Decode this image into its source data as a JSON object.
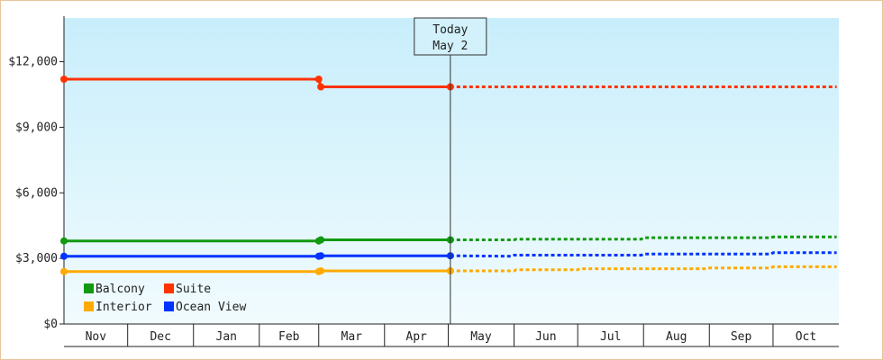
{
  "chart_data": {
    "type": "line",
    "y_ticks": [
      {
        "value": 0,
        "label": "$0"
      },
      {
        "value": 3000,
        "label": "$3,000"
      },
      {
        "value": 6000,
        "label": "$6,000"
      },
      {
        "value": 9000,
        "label": "$9,000"
      },
      {
        "value": 12000,
        "label": "$12,000"
      }
    ],
    "ylim": [
      0,
      14000
    ],
    "months": [
      "Nov",
      "Dec",
      "Jan",
      "Feb",
      "Mar",
      "Apr",
      "May",
      "Jun",
      "Jul",
      "Aug",
      "Sep",
      "Oct"
    ],
    "today": {
      "line1": "Today",
      "line2": "May 2"
    },
    "legend_placement": "bottom-left",
    "series": [
      {
        "name": "Balcony",
        "color": "#119911",
        "actual": [
          {
            "x": "Nov 1",
            "y": 3800
          },
          {
            "x": "Mar 1",
            "y": 3800
          },
          {
            "x": "Mar 2",
            "y": 3850
          },
          {
            "x": "May 2",
            "y": 3850
          }
        ],
        "forecast": [
          {
            "x": "May 2",
            "y": 3850
          },
          {
            "x": "Jun 1",
            "y": 3850
          },
          {
            "x": "Jun 2",
            "y": 3880
          },
          {
            "x": "Jul 31",
            "y": 3880
          },
          {
            "x": "Aug 1",
            "y": 3950
          },
          {
            "x": "Sep 30",
            "y": 3950
          },
          {
            "x": "Oct 1",
            "y": 3980
          },
          {
            "x": "Oct 31",
            "y": 3980
          }
        ]
      },
      {
        "name": "Suite",
        "color": "#ff3300",
        "actual": [
          {
            "x": "Nov 1",
            "y": 11200
          },
          {
            "x": "Mar 1",
            "y": 11200
          },
          {
            "x": "Mar 2",
            "y": 10850
          },
          {
            "x": "May 2",
            "y": 10850
          }
        ],
        "forecast": [
          {
            "x": "May 2",
            "y": 10850
          },
          {
            "x": "Oct 31",
            "y": 10850
          }
        ]
      },
      {
        "name": "Interior",
        "color": "#ffaa00",
        "actual": [
          {
            "x": "Nov 1",
            "y": 2400
          },
          {
            "x": "Mar 1",
            "y": 2400
          },
          {
            "x": "Mar 2",
            "y": 2430
          },
          {
            "x": "May 2",
            "y": 2430
          }
        ],
        "forecast": [
          {
            "x": "May 2",
            "y": 2430
          },
          {
            "x": "Jun 1",
            "y": 2430
          },
          {
            "x": "Jun 2",
            "y": 2480
          },
          {
            "x": "Jul 1",
            "y": 2480
          },
          {
            "x": "Jul 2",
            "y": 2530
          },
          {
            "x": "Aug 31",
            "y": 2530
          },
          {
            "x": "Sep 1",
            "y": 2560
          },
          {
            "x": "Sep 30",
            "y": 2560
          },
          {
            "x": "Oct 1",
            "y": 2620
          },
          {
            "x": "Oct 31",
            "y": 2620
          }
        ]
      },
      {
        "name": "Ocean View",
        "color": "#0033ff",
        "actual": [
          {
            "x": "Nov 1",
            "y": 3100
          },
          {
            "x": "Mar 1",
            "y": 3100
          },
          {
            "x": "Mar 2",
            "y": 3120
          },
          {
            "x": "May 2",
            "y": 3120
          }
        ],
        "forecast": [
          {
            "x": "May 2",
            "y": 3120
          },
          {
            "x": "May 31",
            "y": 3100
          },
          {
            "x": "Jun 1",
            "y": 3150
          },
          {
            "x": "Jul 31",
            "y": 3150
          },
          {
            "x": "Aug 1",
            "y": 3200
          },
          {
            "x": "Sep 30",
            "y": 3200
          },
          {
            "x": "Oct 1",
            "y": 3260
          },
          {
            "x": "Oct 31",
            "y": 3260
          }
        ]
      }
    ],
    "markers": [
      {
        "series": "Balcony",
        "x": "Nov 1",
        "y": 3800
      },
      {
        "series": "Balcony",
        "x": "Mar 1",
        "y": 3800
      },
      {
        "series": "Balcony",
        "x": "Mar 2",
        "y": 3850
      },
      {
        "series": "Balcony",
        "x": "May 2",
        "y": 3850
      },
      {
        "series": "Suite",
        "x": "Nov 1",
        "y": 11200
      },
      {
        "series": "Suite",
        "x": "Mar 1",
        "y": 11200
      },
      {
        "series": "Suite",
        "x": "Mar 2",
        "y": 10850
      },
      {
        "series": "Suite",
        "x": "May 2",
        "y": 10850
      },
      {
        "series": "Interior",
        "x": "Nov 1",
        "y": 2400
      },
      {
        "series": "Interior",
        "x": "Mar 1",
        "y": 2400
      },
      {
        "series": "Interior",
        "x": "Mar 2",
        "y": 2430
      },
      {
        "series": "Interior",
        "x": "May 2",
        "y": 2430
      },
      {
        "series": "Ocean View",
        "x": "Nov 1",
        "y": 3100
      },
      {
        "series": "Ocean View",
        "x": "Mar 1",
        "y": 3100
      },
      {
        "series": "Ocean View",
        "x": "Mar 2",
        "y": 3120
      },
      {
        "series": "Ocean View",
        "x": "May 2",
        "y": 3120
      }
    ]
  }
}
